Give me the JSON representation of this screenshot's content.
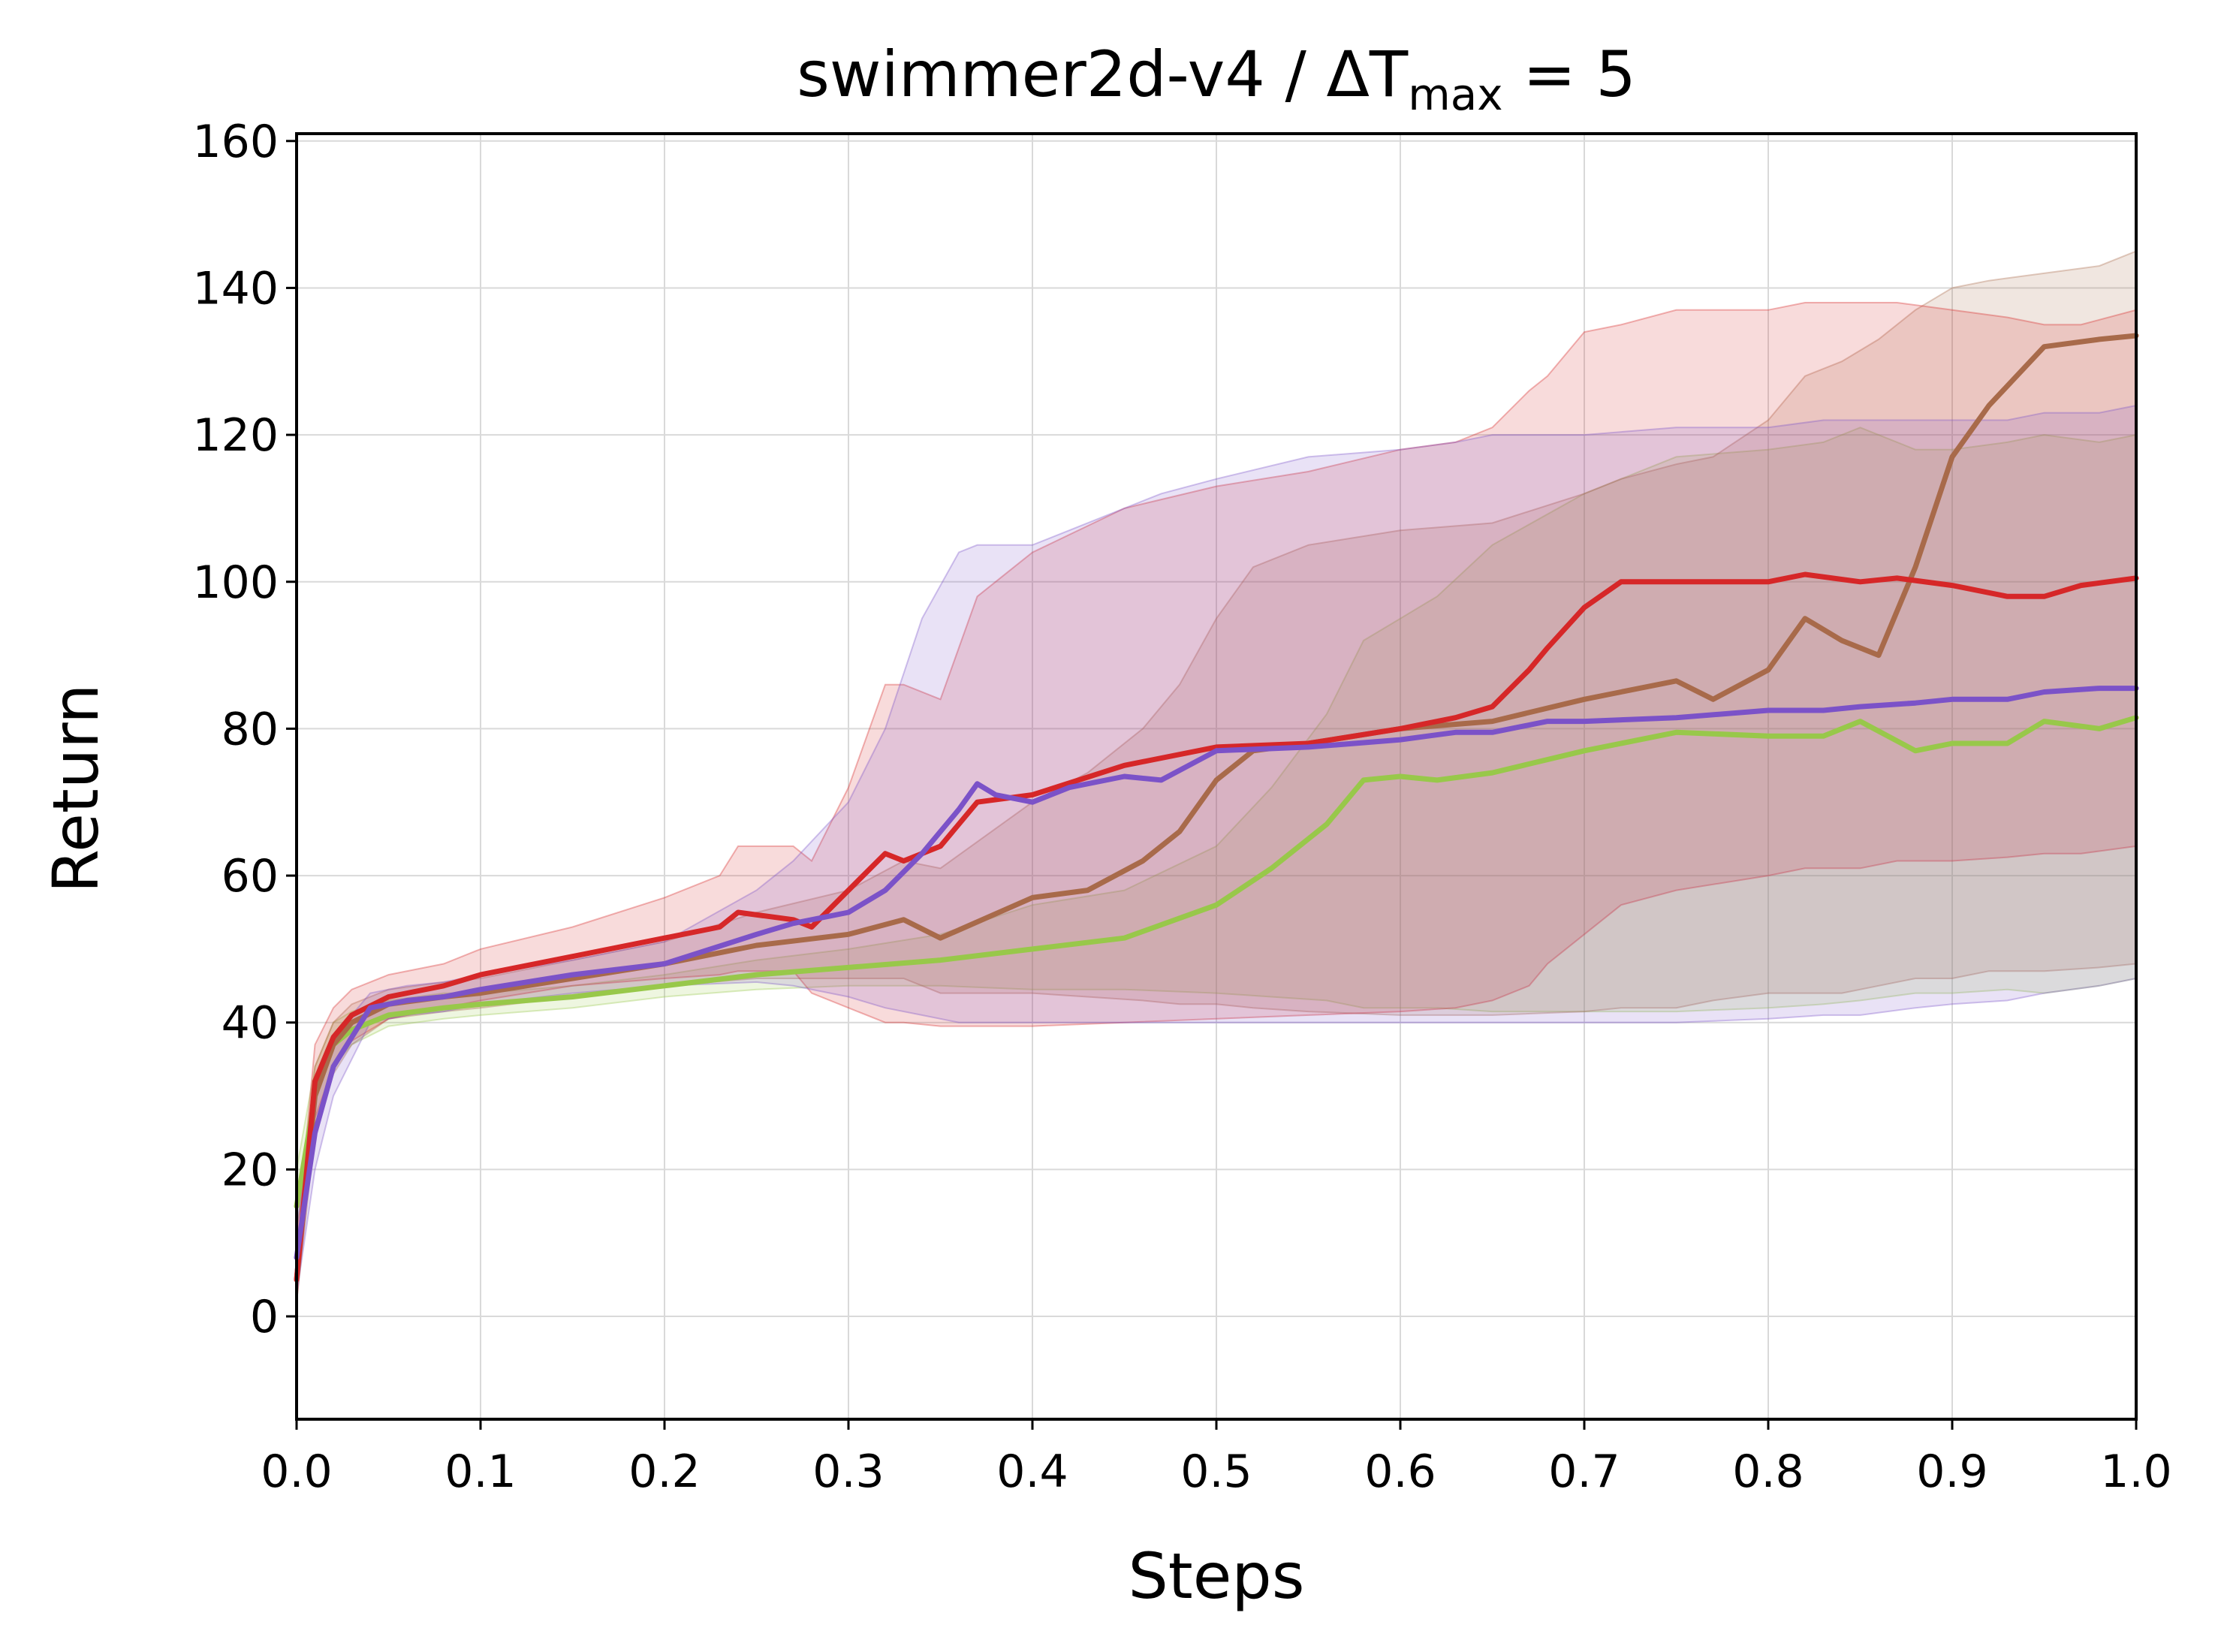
{
  "chart_data": {
    "type": "line",
    "title": "swimmer2d-v4 / ΔT",
    "title_subscript": "max",
    "title_suffix": " = 5",
    "xlabel": "Steps",
    "ylabel": "Return",
    "xlim": [
      0.0,
      1.0
    ],
    "ylim": [
      -14,
      161
    ],
    "xticks": [
      "0.0",
      "0.1",
      "0.2",
      "0.3",
      "0.4",
      "0.5",
      "0.6",
      "0.7",
      "0.8",
      "0.9",
      "1.0"
    ],
    "yticks": [
      "0",
      "20",
      "40",
      "60",
      "80",
      "100",
      "120",
      "140",
      "160"
    ],
    "grid": true,
    "legend": "none",
    "series": [
      {
        "color": "#98c84a",
        "x": [
          0.0,
          0.01,
          0.02,
          0.03,
          0.05,
          0.08,
          0.1,
          0.15,
          0.2,
          0.25,
          0.3,
          0.35,
          0.4,
          0.45,
          0.5,
          0.53,
          0.56,
          0.58,
          0.6,
          0.62,
          0.65,
          0.7,
          0.75,
          0.8,
          0.83,
          0.85,
          0.88,
          0.9,
          0.93,
          0.95,
          0.98,
          1.0
        ],
        "y": [
          15,
          30,
          37,
          39,
          41,
          42,
          42.5,
          43.5,
          45,
          46.5,
          47.5,
          48.5,
          50,
          51.5,
          56,
          61,
          67,
          73,
          73.5,
          73,
          74,
          77,
          79.5,
          79,
          79,
          81,
          77,
          78,
          78,
          81,
          80,
          81.5
        ],
        "lower": [
          12,
          26,
          34,
          37,
          39.5,
          40.5,
          41,
          42,
          43.5,
          44.5,
          45,
          45,
          44.5,
          44.5,
          44,
          43.5,
          43,
          42,
          42,
          42,
          41.5,
          41.5,
          41.5,
          42,
          42.5,
          43,
          44,
          44,
          44.5,
          44,
          45,
          46
        ],
        "upper": [
          20,
          34,
          40,
          41.5,
          43,
          44,
          44,
          45,
          46.5,
          48.5,
          50,
          52,
          56,
          58,
          64,
          72,
          82,
          92,
          95,
          98,
          105,
          112,
          117,
          118,
          119,
          121,
          118,
          118,
          119,
          120,
          119,
          120
        ]
      },
      {
        "color": "#a86a4a",
        "x": [
          0.0,
          0.01,
          0.02,
          0.03,
          0.05,
          0.08,
          0.1,
          0.15,
          0.2,
          0.25,
          0.3,
          0.33,
          0.35,
          0.4,
          0.43,
          0.46,
          0.48,
          0.5,
          0.52,
          0.55,
          0.6,
          0.65,
          0.7,
          0.72,
          0.75,
          0.77,
          0.8,
          0.82,
          0.84,
          0.86,
          0.88,
          0.9,
          0.92,
          0.95,
          0.98,
          1.0
        ],
        "y": [
          5,
          30,
          37,
          40,
          42.5,
          43.5,
          44,
          46,
          48,
          50.5,
          52,
          54,
          51.5,
          57,
          58,
          62,
          66,
          73,
          77,
          78,
          80,
          81,
          84,
          85,
          86.5,
          84,
          88,
          95,
          92,
          90,
          102,
          117,
          124,
          132,
          133,
          133.5
        ],
        "lower": [
          2,
          25,
          33,
          37,
          40.5,
          41.5,
          42,
          43.5,
          45,
          46,
          46,
          46,
          44,
          44,
          43.5,
          43,
          42.5,
          42.5,
          42,
          41.5,
          41,
          41,
          41.5,
          42,
          42,
          43,
          44,
          44,
          44,
          45,
          46,
          46,
          47,
          47,
          47.5,
          48
        ],
        "upper": [
          8,
          34,
          40,
          42.5,
          44.5,
          45.5,
          46,
          48.5,
          51,
          55,
          58,
          62,
          61,
          70,
          74,
          80,
          86,
          95,
          102,
          105,
          107,
          108,
          112,
          114,
          116,
          117,
          122,
          128,
          130,
          133,
          137,
          140,
          141,
          142,
          143,
          145
        ]
      },
      {
        "color": "#d62728",
        "x": [
          0.0,
          0.01,
          0.02,
          0.03,
          0.05,
          0.08,
          0.1,
          0.15,
          0.2,
          0.23,
          0.24,
          0.27,
          0.28,
          0.3,
          0.32,
          0.33,
          0.35,
          0.37,
          0.4,
          0.45,
          0.5,
          0.55,
          0.6,
          0.63,
          0.65,
          0.67,
          0.68,
          0.7,
          0.72,
          0.75,
          0.8,
          0.82,
          0.85,
          0.87,
          0.9,
          0.93,
          0.95,
          0.97,
          1.0
        ],
        "y": [
          5,
          32,
          38,
          41,
          43.5,
          45,
          46.5,
          49,
          51.5,
          53,
          55,
          54,
          53,
          58,
          63,
          62,
          64,
          70,
          71,
          75,
          77.5,
          78,
          80,
          81.5,
          83,
          88,
          91,
          96.5,
          100,
          100,
          100,
          101,
          100,
          100.5,
          99.5,
          98,
          98,
          99.5,
          100.5
        ],
        "lower": [
          2,
          27,
          34,
          37.5,
          40.5,
          42,
          43,
          45,
          46,
          46.5,
          47,
          47,
          44,
          42,
          40,
          40,
          39.5,
          39.5,
          39.5,
          40,
          40.5,
          41,
          41.5,
          42,
          43,
          45,
          48,
          52,
          56,
          58,
          60,
          61,
          61,
          62,
          62,
          62.5,
          63,
          63,
          64
        ],
        "upper": [
          10,
          37,
          42,
          44.5,
          46.5,
          48,
          50,
          53,
          57,
          60,
          64,
          64,
          62,
          72,
          86,
          86,
          84,
          98,
          104,
          110,
          113,
          115,
          118,
          119,
          121,
          126,
          128,
          134,
          135,
          137,
          137,
          138,
          138,
          138,
          137,
          136,
          135,
          135,
          137
        ]
      },
      {
        "color": "#7b52c8",
        "x": [
          0.0,
          0.01,
          0.02,
          0.03,
          0.04,
          0.06,
          0.08,
          0.1,
          0.15,
          0.2,
          0.25,
          0.27,
          0.3,
          0.32,
          0.34,
          0.36,
          0.37,
          0.38,
          0.4,
          0.42,
          0.45,
          0.47,
          0.5,
          0.55,
          0.6,
          0.63,
          0.65,
          0.68,
          0.7,
          0.75,
          0.8,
          0.83,
          0.85,
          0.88,
          0.9,
          0.93,
          0.95,
          0.98,
          1.0
        ],
        "y": [
          8,
          25,
          34,
          38,
          42,
          43,
          43.5,
          44.5,
          46.5,
          48,
          52,
          53.5,
          55,
          58,
          63,
          69,
          72.5,
          71,
          70,
          72,
          73.5,
          73,
          77,
          77.5,
          78.5,
          79.5,
          79.5,
          81,
          81,
          81.5,
          82.5,
          82.5,
          83,
          83.5,
          84,
          84,
          85,
          85.5,
          85.5
        ],
        "lower": [
          3,
          20,
          30,
          35,
          40,
          41,
          41.5,
          42.5,
          44,
          45,
          45.5,
          45,
          43.5,
          42,
          41,
          40,
          40,
          40,
          40,
          40,
          40,
          40,
          40,
          40,
          40,
          40,
          40,
          40,
          40,
          40,
          40.5,
          41,
          41,
          42,
          42.5,
          43,
          44,
          45,
          46
        ],
        "upper": [
          12,
          30,
          38,
          41,
          44,
          45,
          45.5,
          46.5,
          48.5,
          51,
          58,
          62,
          70,
          80,
          95,
          104,
          105,
          105,
          105,
          107,
          110,
          112,
          114,
          117,
          118,
          119,
          120,
          120,
          120,
          121,
          121,
          122,
          122,
          122,
          122,
          122,
          123,
          123,
          124
        ]
      }
    ]
  }
}
